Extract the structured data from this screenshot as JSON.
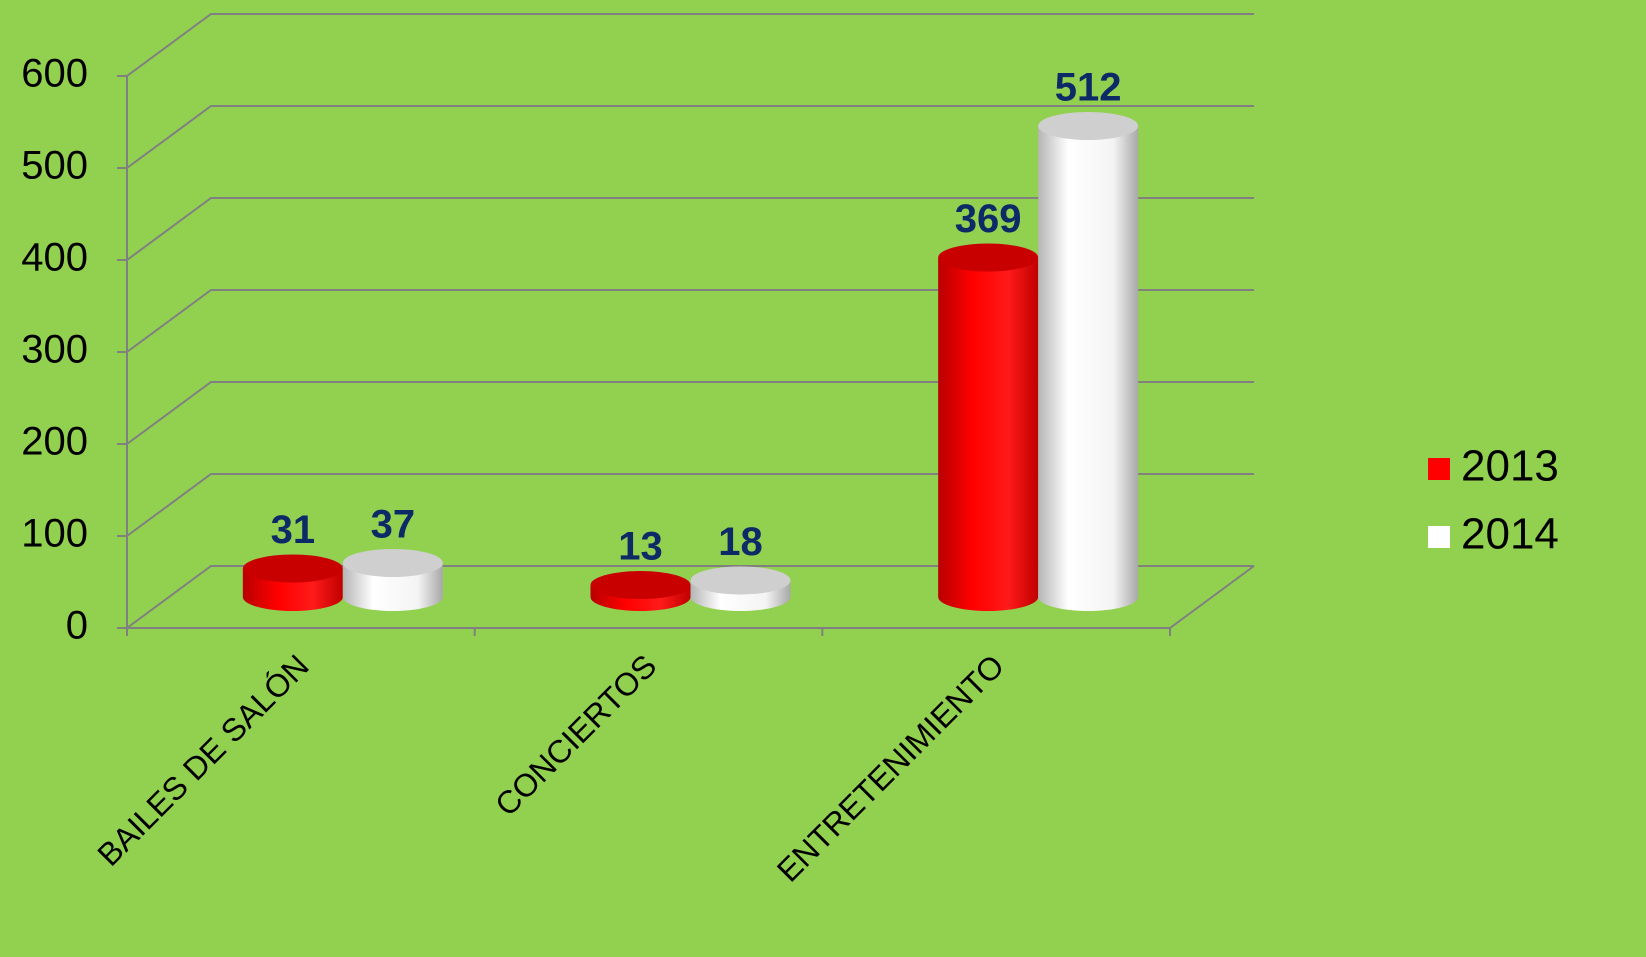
{
  "chart_data": {
    "type": "bar",
    "categories": [
      "BAILES DE SALÓN",
      "CONCIERTOS",
      "ENTRETENIMIENTO"
    ],
    "series": [
      {
        "name": "2013",
        "color": "#ff0000",
        "values": [
          31,
          13,
          369
        ]
      },
      {
        "name": "2014",
        "color": "#ffffff",
        "values": [
          37,
          18,
          512
        ]
      }
    ],
    "ylim": [
      0,
      600
    ],
    "yticks": [
      0,
      100,
      200,
      300,
      400,
      500,
      600
    ],
    "grid": true,
    "legend": "right"
  }
}
